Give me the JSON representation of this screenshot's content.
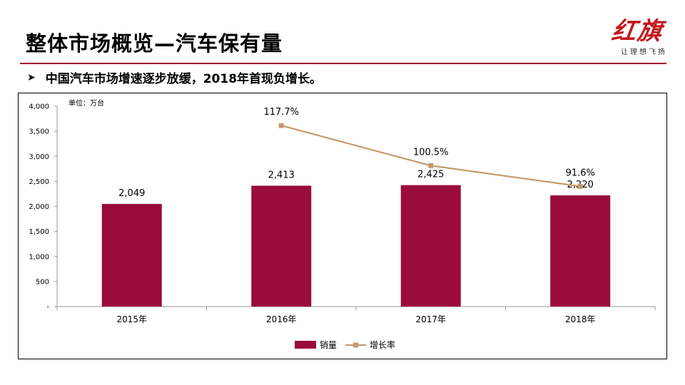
{
  "header": {
    "title": "整体市场概览—汽车保有量",
    "logo_text": "红旗",
    "logo_subtitle": "让理想飞扬",
    "bullet": "中国汽车市场增速逐步放缓，2018年首现负增长。"
  },
  "colors": {
    "accent": "#9c1037",
    "bar": "#9a0c3a",
    "line": "#c49a6c"
  },
  "chart_data": {
    "type": "bar",
    "unit_label": "单位：万台",
    "categories": [
      "2015年",
      "2016年",
      "2017年",
      "2018年"
    ],
    "series": [
      {
        "name": "销量",
        "type": "bar",
        "values": [
          2049,
          2413,
          2425,
          2220
        ],
        "labels": [
          "2,049",
          "2,413",
          "2,425",
          "2,220"
        ]
      },
      {
        "name": "增长率",
        "type": "line",
        "values": [
          null,
          117.7,
          100.5,
          91.6
        ],
        "labels": [
          "",
          "117.7%",
          "100.5%",
          "91.6%"
        ]
      }
    ],
    "ylim": [
      0,
      4000
    ],
    "yticks": [
      0,
      500,
      1000,
      1500,
      2000,
      2500,
      3000,
      3500,
      4000
    ],
    "ytick_labels": [
      "-",
      "500",
      "1,000",
      "1,500",
      "2,000",
      "2,500",
      "3,000",
      "3,500",
      "4,000"
    ],
    "grid": false,
    "legend_position": "bottom"
  }
}
